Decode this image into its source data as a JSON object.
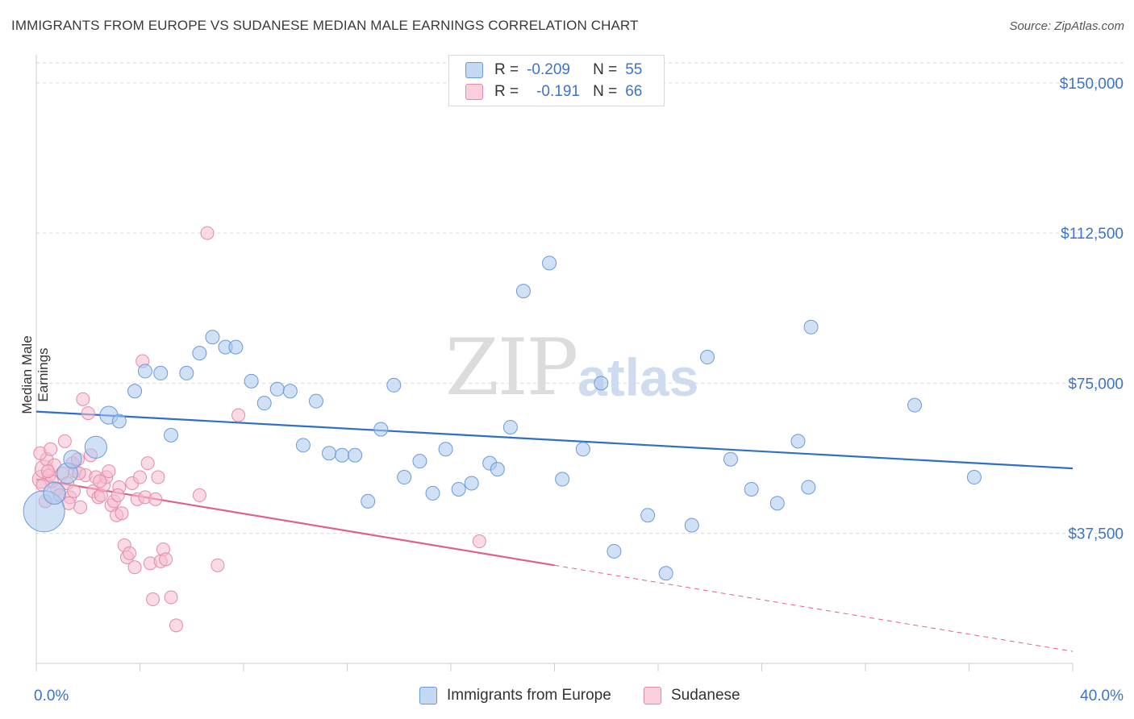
{
  "title": "IMMIGRANTS FROM EUROPE VS SUDANESE MEDIAN MALE EARNINGS CORRELATION CHART",
  "source": "Source: ZipAtlas.com",
  "watermark": {
    "zip": "ZIP",
    "atlas": "atlas"
  },
  "legend": {
    "r_label": "R =",
    "n_label": "N =",
    "series1": {
      "r": "-0.209",
      "n": "55"
    },
    "series2": {
      "r": "-0.191",
      "n": "66"
    }
  },
  "bottom_legend": {
    "series1": "Immigrants from Europe",
    "series2": "Sudanese"
  },
  "colors": {
    "blue_fill": "#a9c8ef",
    "blue_stroke": "#6b9ad8",
    "blue_line": "#2f6fc9",
    "pink_fill": "#f6bccd",
    "pink_stroke": "#e58aa8",
    "pink_line": "#e0608c",
    "axis_text": "#3b74c8",
    "grid": "#d9d9d9"
  },
  "chart_data": {
    "type": "scatter",
    "title": "IMMIGRANTS FROM EUROPE VS SUDANESE MEDIAN MALE EARNINGS CORRELATION CHART",
    "xlabel": "",
    "ylabel": "Median Male Earnings",
    "xlim": [
      0,
      40
    ],
    "ylim": [
      5000,
      155000
    ],
    "x_tick_labels": [
      "0.0%",
      "40.0%"
    ],
    "y_ticks": [
      37500,
      75000,
      112500,
      150000
    ],
    "y_tick_labels": [
      "$37,500",
      "$75,000",
      "$112,500",
      "$150,000"
    ],
    "series": [
      {
        "name": "Immigrants from Europe",
        "r": -0.209,
        "n": 55,
        "trend": {
          "x0": 0,
          "y0": 67900,
          "x1": 40,
          "y1": 53700
        },
        "points": [
          [
            0.3,
            43000,
            3
          ],
          [
            0.7,
            47500,
            1.6
          ],
          [
            1.2,
            52500,
            1.5
          ],
          [
            1.4,
            56000,
            1.3
          ],
          [
            2.3,
            59000,
            1.6
          ],
          [
            2.8,
            67000,
            1.3
          ],
          [
            3.2,
            65500,
            1
          ],
          [
            3.8,
            73000,
            1
          ],
          [
            4.2,
            78000,
            1
          ],
          [
            4.8,
            77500,
            1
          ],
          [
            5.2,
            62000,
            1
          ],
          [
            5.8,
            77500,
            1
          ],
          [
            6.3,
            82500,
            1
          ],
          [
            6.8,
            86500,
            1
          ],
          [
            7.3,
            84000,
            1
          ],
          [
            7.7,
            84000,
            1
          ],
          [
            8.3,
            75500,
            1
          ],
          [
            8.8,
            70000,
            1
          ],
          [
            9.3,
            73500,
            1
          ],
          [
            9.8,
            73000,
            1
          ],
          [
            10.3,
            59500,
            1
          ],
          [
            10.8,
            70500,
            1
          ],
          [
            11.3,
            57500,
            1
          ],
          [
            11.8,
            57000,
            1
          ],
          [
            12.3,
            57000,
            1
          ],
          [
            12.8,
            45500,
            1
          ],
          [
            13.3,
            63500,
            1
          ],
          [
            13.8,
            74500,
            1
          ],
          [
            14.2,
            51500,
            1
          ],
          [
            14.8,
            55500,
            1
          ],
          [
            15.3,
            47500,
            1
          ],
          [
            15.8,
            58500,
            1
          ],
          [
            16.3,
            48500,
            1
          ],
          [
            16.8,
            50000,
            1
          ],
          [
            17.5,
            55000,
            1
          ],
          [
            17.8,
            53500,
            1
          ],
          [
            18.3,
            64000,
            1
          ],
          [
            18.8,
            98000,
            1
          ],
          [
            19.8,
            105000,
            1
          ],
          [
            20.3,
            51000,
            1
          ],
          [
            21.1,
            58500,
            1
          ],
          [
            21.8,
            75000,
            1
          ],
          [
            22.3,
            33000,
            1
          ],
          [
            23.6,
            42000,
            1
          ],
          [
            24.3,
            27500,
            1
          ],
          [
            25.3,
            39500,
            1
          ],
          [
            25.9,
            81500,
            1
          ],
          [
            26.8,
            56000,
            1
          ],
          [
            27.6,
            48500,
            1
          ],
          [
            28.6,
            45000,
            1
          ],
          [
            29.4,
            60500,
            1
          ],
          [
            29.8,
            49000,
            1
          ],
          [
            29.9,
            89000,
            1
          ],
          [
            33.9,
            69500,
            1
          ],
          [
            36.2,
            51500,
            1
          ]
        ]
      },
      {
        "name": "Sudanese",
        "r": -0.191,
        "n": 66,
        "trend": {
          "x0": 0,
          "y0": 51000,
          "x1": 20,
          "y1": 29500
        },
        "trend_dashed": {
          "x0": 20,
          "y0": 29500,
          "x1": 40,
          "y1": 8000
        },
        "points": [
          [
            0.2,
            51000,
            1.4
          ],
          [
            0.3,
            53500,
            1.4
          ],
          [
            0.4,
            56000,
            1
          ],
          [
            0.5,
            52000,
            1
          ],
          [
            0.6,
            50500,
            1
          ],
          [
            0.7,
            54500,
            1
          ],
          [
            0.8,
            48500,
            1
          ],
          [
            0.9,
            47000,
            1
          ],
          [
            1.0,
            52500,
            1
          ],
          [
            1.1,
            60500,
            1
          ],
          [
            1.2,
            50000,
            1
          ],
          [
            1.3,
            46500,
            1
          ],
          [
            1.4,
            55000,
            1
          ],
          [
            1.5,
            53000,
            1
          ],
          [
            1.6,
            56000,
            1
          ],
          [
            1.7,
            44000,
            1
          ],
          [
            1.8,
            71000,
            1
          ],
          [
            1.9,
            52000,
            1
          ],
          [
            2.0,
            67500,
            1
          ],
          [
            2.1,
            57000,
            1
          ],
          [
            2.2,
            48000,
            1
          ],
          [
            2.3,
            51500,
            1
          ],
          [
            2.4,
            46500,
            1
          ],
          [
            2.5,
            47000,
            1
          ],
          [
            2.6,
            49500,
            1
          ],
          [
            2.7,
            51500,
            1
          ],
          [
            2.8,
            53000,
            1
          ],
          [
            2.9,
            44500,
            1
          ],
          [
            3.0,
            45500,
            1
          ],
          [
            3.1,
            42000,
            1
          ],
          [
            3.2,
            49000,
            1
          ],
          [
            3.3,
            42500,
            1
          ],
          [
            3.4,
            34500,
            1
          ],
          [
            3.5,
            31500,
            1
          ],
          [
            3.6,
            32500,
            1
          ],
          [
            3.7,
            50000,
            1
          ],
          [
            3.8,
            29000,
            1
          ],
          [
            3.9,
            46000,
            1
          ],
          [
            4.0,
            51500,
            1
          ],
          [
            4.1,
            80500,
            1
          ],
          [
            4.2,
            46500,
            1
          ],
          [
            4.3,
            55000,
            1
          ],
          [
            4.4,
            30000,
            1
          ],
          [
            4.5,
            21000,
            1
          ],
          [
            4.6,
            46000,
            1
          ],
          [
            4.7,
            51500,
            1
          ],
          [
            4.8,
            30500,
            1
          ],
          [
            4.9,
            33500,
            1
          ],
          [
            5.0,
            31000,
            1
          ],
          [
            5.2,
            21500,
            1
          ],
          [
            5.4,
            14500,
            1
          ],
          [
            6.3,
            47000,
            1
          ],
          [
            6.6,
            112500,
            1
          ],
          [
            7.0,
            29500,
            1
          ],
          [
            7.8,
            67000,
            1
          ],
          [
            0.15,
            57500,
            1
          ],
          [
            0.25,
            49500,
            1
          ],
          [
            0.35,
            45500,
            1
          ],
          [
            0.45,
            53000,
            1
          ],
          [
            0.55,
            58500,
            1
          ],
          [
            1.25,
            45000,
            1
          ],
          [
            1.45,
            48000,
            1
          ],
          [
            1.65,
            52500,
            1
          ],
          [
            2.45,
            50500,
            1
          ],
          [
            3.15,
            47000,
            1
          ],
          [
            17.1,
            35500,
            1
          ]
        ]
      }
    ]
  }
}
